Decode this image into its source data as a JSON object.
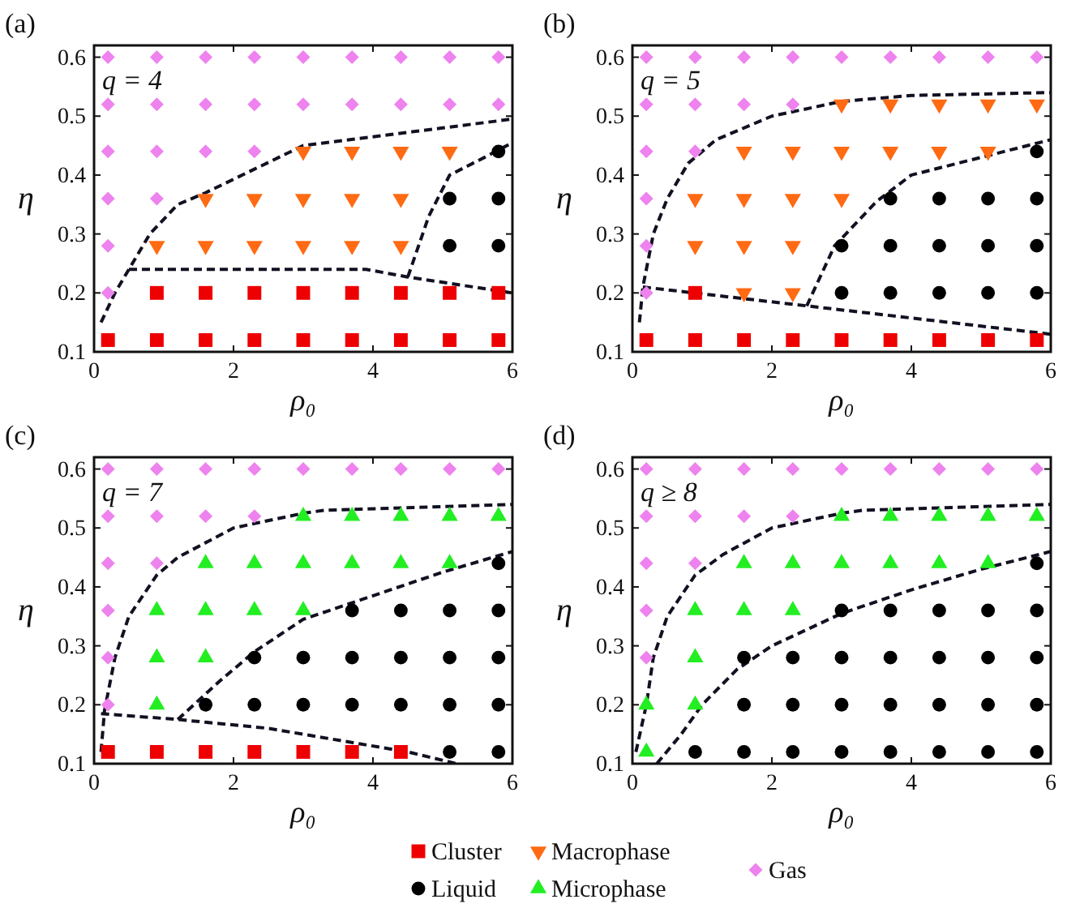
{
  "chart_data": [
    {
      "type": "scatter",
      "title": "(a)",
      "annotations": [
        "q = 4"
      ],
      "xlabel": "ρ₀",
      "ylabel": "η",
      "xlim": [
        0,
        6
      ],
      "ylim": [
        0.1,
        0.62
      ],
      "xticks": [
        0,
        2,
        4,
        6
      ],
      "yticks": [
        0.1,
        0.2,
        0.3,
        0.4,
        0.5,
        0.6
      ],
      "legend": "bottom",
      "series": [
        {
          "type": "line",
          "color": "#111122",
          "line_style": "dashed",
          "marker": "none",
          "x": [
            0.1,
            0.3,
            0.5,
            0.8,
            1.2,
            1.6,
            2.3,
            3.0,
            4.0,
            5.0,
            6.0
          ],
          "values": [
            0.15,
            0.2,
            0.24,
            0.3,
            0.35,
            0.37,
            0.41,
            0.45,
            0.465,
            0.48,
            0.495
          ]
        },
        {
          "type": "line",
          "color": "#111122",
          "line_style": "dashed",
          "marker": "none",
          "x": [
            0.5,
            3.9,
            4.5,
            6.0
          ],
          "values": [
            0.24,
            0.24,
            0.227,
            0.2
          ]
        },
        {
          "type": "line",
          "color": "#111122",
          "line_style": "dashed",
          "marker": "none",
          "x": [
            4.5,
            4.8,
            5.1,
            5.6,
            6.0
          ],
          "values": [
            0.227,
            0.33,
            0.4,
            0.43,
            0.455
          ]
        },
        {
          "name": "Cluster",
          "type": "scatter",
          "marker": "square",
          "color": "#ee0000",
          "x": [
            0.9,
            1.6,
            2.3,
            3.0,
            3.7,
            4.4,
            5.1,
            5.8,
            0.2,
            0.9,
            1.6,
            2.3,
            3.0,
            3.7,
            4.4,
            5.1,
            5.8
          ],
          "values": [
            0.2,
            0.2,
            0.2,
            0.2,
            0.2,
            0.2,
            0.2,
            0.2,
            0.12,
            0.12,
            0.12,
            0.12,
            0.12,
            0.12,
            0.12,
            0.12,
            0.12
          ]
        },
        {
          "name": "Liquid",
          "type": "scatter",
          "marker": "circle",
          "color": "#000000",
          "x": [
            5.8,
            5.1,
            5.8,
            5.1,
            5.8
          ],
          "values": [
            0.44,
            0.36,
            0.36,
            0.28,
            0.28
          ]
        },
        {
          "name": "Macrophase",
          "type": "scatter",
          "marker": "triangle-down",
          "color": "#ff6a13",
          "x": [
            3.0,
            3.7,
            4.4,
            5.1,
            1.6,
            2.3,
            3.0,
            3.7,
            4.4,
            0.9,
            1.6,
            2.3,
            3.0,
            3.7,
            4.4
          ],
          "values": [
            0.44,
            0.44,
            0.44,
            0.44,
            0.36,
            0.36,
            0.36,
            0.36,
            0.36,
            0.28,
            0.28,
            0.28,
            0.28,
            0.28,
            0.28
          ]
        },
        {
          "name": "Gas",
          "type": "scatter",
          "marker": "diamond",
          "color": "#ee82ee",
          "x": [
            0.2,
            0.9,
            1.6,
            2.3,
            3.0,
            3.7,
            4.4,
            5.1,
            5.8,
            0.2,
            0.9,
            1.6,
            2.3,
            3.0,
            3.7,
            4.4,
            5.1,
            5.8,
            0.2,
            0.9,
            1.6,
            2.3,
            0.2,
            0.9,
            0.2,
            0.2
          ],
          "values": [
            0.6,
            0.6,
            0.6,
            0.6,
            0.6,
            0.6,
            0.6,
            0.6,
            0.6,
            0.52,
            0.52,
            0.52,
            0.52,
            0.52,
            0.52,
            0.52,
            0.52,
            0.52,
            0.44,
            0.44,
            0.44,
            0.44,
            0.36,
            0.36,
            0.28,
            0.2
          ]
        }
      ]
    },
    {
      "type": "scatter",
      "title": "(b)",
      "annotations": [
        "q = 5"
      ],
      "xlabel": "ρ₀",
      "ylabel": "η",
      "xlim": [
        0,
        6
      ],
      "ylim": [
        0.1,
        0.62
      ],
      "xticks": [
        0,
        2,
        4,
        6
      ],
      "yticks": [
        0.1,
        0.2,
        0.3,
        0.4,
        0.5,
        0.6
      ],
      "legend": "bottom",
      "series": [
        {
          "type": "line",
          "color": "#111122",
          "line_style": "dashed",
          "marker": "none",
          "x": [
            0.1,
            0.15,
            0.3,
            0.5,
            0.8,
            1.2,
            2.0,
            3.0,
            4.0,
            6.0
          ],
          "values": [
            0.15,
            0.21,
            0.3,
            0.36,
            0.42,
            0.46,
            0.5,
            0.525,
            0.535,
            0.54
          ]
        },
        {
          "type": "line",
          "color": "#111122",
          "line_style": "dashed",
          "marker": "none",
          "x": [
            0.15,
            2.5,
            6.0
          ],
          "values": [
            0.21,
            0.178,
            0.13
          ]
        },
        {
          "type": "line",
          "color": "#111122",
          "line_style": "dashed",
          "marker": "none",
          "x": [
            2.5,
            2.9,
            3.5,
            4.0,
            5.0,
            6.0
          ],
          "values": [
            0.178,
            0.28,
            0.355,
            0.4,
            0.43,
            0.46
          ]
        },
        {
          "name": "Cluster",
          "type": "scatter",
          "marker": "square",
          "color": "#ee0000",
          "x": [
            0.9,
            0.2,
            0.9,
            1.6,
            2.3,
            3.0,
            3.7,
            4.4,
            5.1,
            5.8
          ],
          "values": [
            0.2,
            0.12,
            0.12,
            0.12,
            0.12,
            0.12,
            0.12,
            0.12,
            0.12,
            0.12
          ]
        },
        {
          "name": "Liquid",
          "type": "scatter",
          "marker": "circle",
          "color": "#000000",
          "x": [
            5.8,
            3.7,
            4.4,
            5.1,
            5.8,
            3.0,
            3.7,
            4.4,
            5.1,
            5.8,
            3.0,
            3.7,
            4.4,
            5.1,
            5.8
          ],
          "values": [
            0.44,
            0.36,
            0.36,
            0.36,
            0.36,
            0.28,
            0.28,
            0.28,
            0.28,
            0.28,
            0.2,
            0.2,
            0.2,
            0.2,
            0.2
          ]
        },
        {
          "name": "Macrophase",
          "type": "scatter",
          "marker": "triangle-down",
          "color": "#ff6a13",
          "x": [
            3.0,
            3.7,
            4.4,
            5.1,
            5.8,
            1.6,
            2.3,
            3.0,
            3.7,
            4.4,
            5.1,
            0.9,
            1.6,
            2.3,
            3.0,
            0.9,
            1.6,
            2.3,
            1.6,
            2.3
          ],
          "values": [
            0.52,
            0.52,
            0.52,
            0.52,
            0.52,
            0.44,
            0.44,
            0.44,
            0.44,
            0.44,
            0.44,
            0.36,
            0.36,
            0.36,
            0.36,
            0.28,
            0.28,
            0.28,
            0.2,
            0.2
          ]
        },
        {
          "name": "Gas",
          "type": "scatter",
          "marker": "diamond",
          "color": "#ee82ee",
          "x": [
            0.2,
            0.9,
            1.6,
            2.3,
            3.0,
            3.7,
            4.4,
            5.1,
            5.8,
            0.2,
            0.9,
            1.6,
            2.3,
            0.2,
            0.9,
            0.2,
            0.2,
            0.2
          ],
          "values": [
            0.6,
            0.6,
            0.6,
            0.6,
            0.6,
            0.6,
            0.6,
            0.6,
            0.6,
            0.52,
            0.52,
            0.52,
            0.52,
            0.44,
            0.44,
            0.36,
            0.28,
            0.2
          ]
        }
      ]
    },
    {
      "type": "scatter",
      "title": "(c)",
      "annotations": [
        "q = 7"
      ],
      "xlabel": "ρ₀",
      "ylabel": "η",
      "xlim": [
        0,
        6
      ],
      "ylim": [
        0.1,
        0.62
      ],
      "xticks": [
        0,
        2,
        4,
        6
      ],
      "yticks": [
        0.1,
        0.2,
        0.3,
        0.4,
        0.5,
        0.6
      ],
      "legend": "bottom",
      "series": [
        {
          "type": "line",
          "color": "#111122",
          "line_style": "dashed",
          "marker": "none",
          "x": [
            0.1,
            0.15,
            0.3,
            0.5,
            0.9,
            1.2,
            2.0,
            3.0,
            3.3,
            6.0
          ],
          "values": [
            0.12,
            0.19,
            0.28,
            0.35,
            0.42,
            0.45,
            0.5,
            0.525,
            0.53,
            0.54
          ]
        },
        {
          "type": "line",
          "color": "#111122",
          "line_style": "dashed",
          "marker": "none",
          "x": [
            0.1,
            1.2,
            2.5,
            4.5,
            5.2
          ],
          "values": [
            0.185,
            0.175,
            0.16,
            0.12,
            0.1
          ]
        },
        {
          "type": "line",
          "color": "#111122",
          "line_style": "dashed",
          "marker": "none",
          "x": [
            1.2,
            1.8,
            2.3,
            3.0,
            4.0,
            5.0,
            6.0
          ],
          "values": [
            0.175,
            0.24,
            0.29,
            0.345,
            0.385,
            0.425,
            0.46
          ]
        },
        {
          "name": "Cluster",
          "type": "scatter",
          "marker": "square",
          "color": "#ee0000",
          "x": [
            0.2,
            0.9,
            1.6,
            2.3,
            3.0,
            3.7,
            4.4
          ],
          "values": [
            0.12,
            0.12,
            0.12,
            0.12,
            0.12,
            0.12,
            0.12
          ]
        },
        {
          "name": "Liquid",
          "type": "scatter",
          "marker": "circle",
          "color": "#000000",
          "x": [
            5.8,
            3.7,
            4.4,
            5.1,
            5.8,
            2.3,
            3.0,
            3.7,
            4.4,
            5.1,
            5.8,
            1.6,
            2.3,
            3.0,
            3.7,
            4.4,
            5.1,
            5.8,
            5.1,
            5.8
          ],
          "values": [
            0.44,
            0.36,
            0.36,
            0.36,
            0.36,
            0.28,
            0.28,
            0.28,
            0.28,
            0.28,
            0.28,
            0.2,
            0.2,
            0.2,
            0.2,
            0.2,
            0.2,
            0.2,
            0.12,
            0.12
          ]
        },
        {
          "name": "Microphase",
          "type": "scatter",
          "marker": "triangle",
          "color": "#22ee22",
          "x": [
            3.0,
            3.7,
            4.4,
            5.1,
            5.8,
            1.6,
            2.3,
            3.0,
            3.7,
            4.4,
            5.1,
            0.9,
            1.6,
            2.3,
            3.0,
            0.9,
            1.6,
            0.9
          ],
          "values": [
            0.52,
            0.52,
            0.52,
            0.52,
            0.52,
            0.44,
            0.44,
            0.44,
            0.44,
            0.44,
            0.44,
            0.36,
            0.36,
            0.36,
            0.36,
            0.28,
            0.28,
            0.2
          ]
        },
        {
          "name": "Gas",
          "type": "scatter",
          "marker": "diamond",
          "color": "#ee82ee",
          "x": [
            0.2,
            0.9,
            1.6,
            2.3,
            3.0,
            3.7,
            4.4,
            5.1,
            5.8,
            0.2,
            0.9,
            1.6,
            2.3,
            0.2,
            0.9,
            0.2,
            0.2,
            0.2
          ],
          "values": [
            0.6,
            0.6,
            0.6,
            0.6,
            0.6,
            0.6,
            0.6,
            0.6,
            0.6,
            0.52,
            0.52,
            0.52,
            0.52,
            0.44,
            0.44,
            0.36,
            0.28,
            0.2
          ]
        }
      ]
    },
    {
      "type": "scatter",
      "title": "(d)",
      "annotations": [
        "q ≥ 8"
      ],
      "xlabel": "ρ₀",
      "ylabel": "η",
      "xlim": [
        0,
        6
      ],
      "ylim": [
        0.1,
        0.62
      ],
      "xticks": [
        0,
        2,
        4,
        6
      ],
      "yticks": [
        0.1,
        0.2,
        0.3,
        0.4,
        0.5,
        0.6
      ],
      "legend": "bottom",
      "series": [
        {
          "type": "line",
          "color": "#111122",
          "line_style": "dashed",
          "marker": "none",
          "x": [
            0.05,
            0.2,
            0.3,
            0.5,
            0.9,
            1.3,
            2.0,
            3.0,
            3.3,
            6.0
          ],
          "values": [
            0.12,
            0.2,
            0.28,
            0.35,
            0.42,
            0.455,
            0.5,
            0.525,
            0.53,
            0.54
          ]
        },
        {
          "type": "line",
          "color": "#111122",
          "line_style": "dashed",
          "marker": "none",
          "x": [
            0.35,
            0.7,
            1.0,
            1.5,
            2.0,
            3.0,
            4.0,
            5.0,
            6.0
          ],
          "values": [
            0.1,
            0.15,
            0.2,
            0.26,
            0.3,
            0.355,
            0.395,
            0.43,
            0.46
          ]
        },
        {
          "name": "Liquid",
          "type": "scatter",
          "marker": "circle",
          "color": "#000000",
          "x": [
            5.8,
            3.0,
            3.7,
            4.4,
            5.1,
            5.8,
            1.6,
            2.3,
            3.0,
            3.7,
            4.4,
            5.1,
            5.8,
            1.6,
            2.3,
            3.0,
            3.7,
            4.4,
            5.1,
            5.8,
            0.9,
            1.6,
            2.3,
            3.0,
            3.7,
            4.4,
            5.1,
            5.8
          ],
          "values": [
            0.44,
            0.36,
            0.36,
            0.36,
            0.36,
            0.36,
            0.28,
            0.28,
            0.28,
            0.28,
            0.28,
            0.28,
            0.28,
            0.2,
            0.2,
            0.2,
            0.2,
            0.2,
            0.2,
            0.2,
            0.12,
            0.12,
            0.12,
            0.12,
            0.12,
            0.12,
            0.12,
            0.12
          ]
        },
        {
          "name": "Microphase",
          "type": "scatter",
          "marker": "triangle",
          "color": "#22ee22",
          "x": [
            3.0,
            3.7,
            4.4,
            5.1,
            5.8,
            1.6,
            2.3,
            3.0,
            3.7,
            4.4,
            5.1,
            0.9,
            1.6,
            2.3,
            0.9,
            0.2,
            0.9,
            0.2
          ],
          "values": [
            0.52,
            0.52,
            0.52,
            0.52,
            0.52,
            0.44,
            0.44,
            0.44,
            0.44,
            0.44,
            0.44,
            0.36,
            0.36,
            0.36,
            0.28,
            0.2,
            0.2,
            0.12
          ]
        },
        {
          "name": "Gas",
          "type": "scatter",
          "marker": "diamond",
          "color": "#ee82ee",
          "x": [
            0.2,
            0.9,
            1.6,
            2.3,
            3.0,
            3.7,
            4.4,
            5.1,
            5.8,
            0.2,
            0.9,
            1.6,
            2.3,
            0.2,
            0.9,
            0.2,
            0.2
          ],
          "values": [
            0.6,
            0.6,
            0.6,
            0.6,
            0.6,
            0.6,
            0.6,
            0.6,
            0.6,
            0.52,
            0.52,
            0.52,
            0.52,
            0.44,
            0.44,
            0.36,
            0.28
          ]
        }
      ]
    }
  ]
}
